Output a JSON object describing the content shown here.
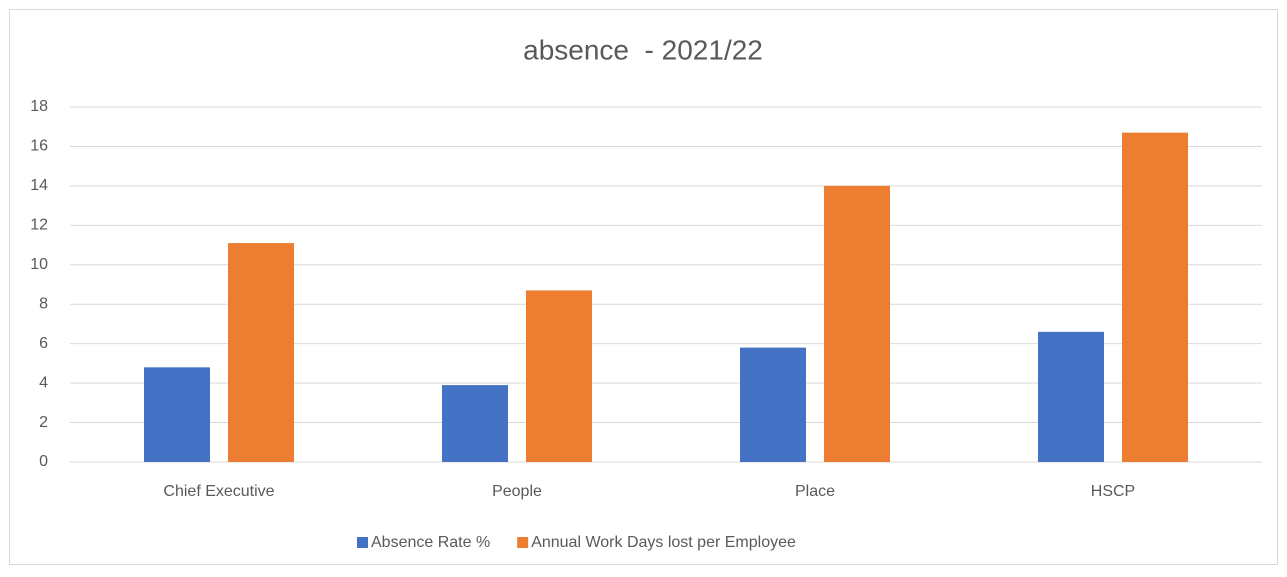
{
  "chart_data": {
    "type": "bar",
    "title": "absence  - 2021/22",
    "categories": [
      "Chief Executive",
      "People",
      "Place",
      "HSCP"
    ],
    "series": [
      {
        "name": "Absence Rate %",
        "color": "#4472c4",
        "values": [
          4.8,
          3.9,
          5.8,
          6.6
        ]
      },
      {
        "name": "Annual Work Days lost per Employee",
        "color": "#ed7d31",
        "values": [
          11.1,
          8.7,
          14.0,
          16.7
        ]
      }
    ],
    "ylim": [
      0,
      18
    ],
    "yticks": [
      0,
      2,
      4,
      6,
      8,
      10,
      12,
      14,
      16,
      18
    ],
    "grid": true,
    "legend": "bottom"
  }
}
